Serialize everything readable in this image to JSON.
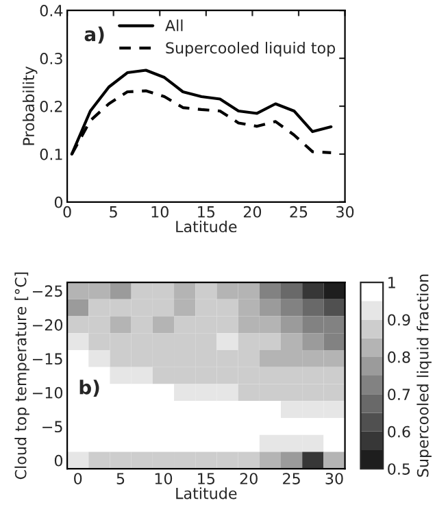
{
  "chart_data": [
    {
      "type": "line",
      "annotations": [
        "a)"
      ],
      "xlabel": "Latitude",
      "ylabel": "Probability",
      "x": [
        0.5,
        2.5,
        4.5,
        6.5,
        8.5,
        10.5,
        12.5,
        14.5,
        16.5,
        18.5,
        20.5,
        22.5,
        24.5,
        26.5,
        28.5
      ],
      "series": [
        {
          "name": "All",
          "color": "#000000",
          "line_style": "solid",
          "values": [
            0.1,
            0.19,
            0.24,
            0.27,
            0.275,
            0.26,
            0.23,
            0.22,
            0.215,
            0.19,
            0.185,
            0.205,
            0.19,
            0.147,
            0.157
          ]
        },
        {
          "name": "Supercooled liquid top",
          "color": "#000000",
          "line_style": "dashed",
          "values": [
            0.1,
            0.17,
            0.205,
            0.23,
            0.232,
            0.22,
            0.197,
            0.193,
            0.19,
            0.165,
            0.158,
            0.168,
            0.14,
            0.105,
            0.103
          ]
        }
      ],
      "xlim": [
        0,
        30
      ],
      "xticks": [
        0,
        5,
        10,
        15,
        20,
        25,
        30
      ],
      "ylim": [
        0,
        0.4
      ],
      "yticks": [
        0,
        0.1,
        0.2,
        0.3,
        0.4
      ],
      "legend": "top right",
      "grid": false
    },
    {
      "type": "heatmap",
      "annotations": [
        "b)"
      ],
      "xlabel": "Latitude",
      "ylabel": "Cloud top temperature [°C]",
      "clabel": "Supercooled liquid fraction",
      "categories": [
        "0",
        null,
        "5",
        null,
        "10",
        null,
        "15",
        null,
        "20",
        null,
        "25",
        null,
        "30"
      ],
      "y_categories": [
        "−25",
        null,
        "−20",
        null,
        "−15",
        null,
        "−10",
        null,
        "−5",
        null,
        "0"
      ],
      "cells": [
        [
          0.8,
          0.82,
          0.78,
          0.86,
          0.87,
          0.8,
          0.86,
          0.82,
          0.8,
          0.72,
          0.65,
          0.55,
          0.5
        ],
        [
          0.75,
          0.86,
          0.86,
          0.86,
          0.87,
          0.8,
          0.86,
          0.86,
          0.84,
          0.78,
          0.72,
          0.65,
          0.6
        ],
        [
          0.88,
          0.86,
          0.83,
          0.86,
          0.83,
          0.86,
          0.86,
          0.86,
          0.83,
          0.84,
          0.76,
          0.72,
          0.7
        ],
        [
          0.92,
          0.87,
          0.86,
          0.86,
          0.86,
          0.86,
          0.87,
          0.92,
          0.86,
          0.86,
          0.8,
          0.75,
          0.72
        ],
        [
          0.95,
          0.92,
          0.87,
          0.87,
          0.87,
          0.87,
          0.87,
          0.87,
          0.86,
          0.84,
          0.82,
          0.8,
          0.8
        ],
        [
          0.95,
          0.95,
          0.92,
          0.91,
          0.88,
          0.88,
          0.87,
          0.87,
          0.87,
          0.86,
          0.86,
          0.86,
          0.86
        ],
        [
          0.95,
          0.95,
          0.95,
          0.95,
          0.95,
          0.93,
          0.91,
          0.9,
          0.89,
          0.88,
          0.88,
          0.88,
          0.88
        ],
        [
          0.95,
          0.95,
          0.95,
          0.95,
          0.95,
          0.95,
          0.95,
          0.95,
          0.95,
          0.95,
          0.93,
          0.92,
          0.92
        ],
        [
          0.95,
          0.95,
          0.95,
          0.95,
          0.95,
          0.95,
          0.95,
          0.95,
          0.95,
          0.95,
          0.95,
          0.95,
          0.95
        ],
        [
          0.95,
          0.95,
          0.95,
          0.95,
          0.95,
          0.95,
          0.95,
          0.95,
          0.95,
          0.93,
          0.91,
          0.92,
          0.95
        ],
        [
          0.9,
          0.88,
          0.88,
          0.88,
          0.88,
          0.88,
          0.88,
          0.88,
          0.86,
          0.84,
          0.75,
          0.55,
          0.8
        ]
      ],
      "clim": [
        0.5,
        1
      ],
      "cticks": [
        0.5,
        0.6,
        0.7,
        0.8,
        0.9,
        1
      ]
    }
  ]
}
